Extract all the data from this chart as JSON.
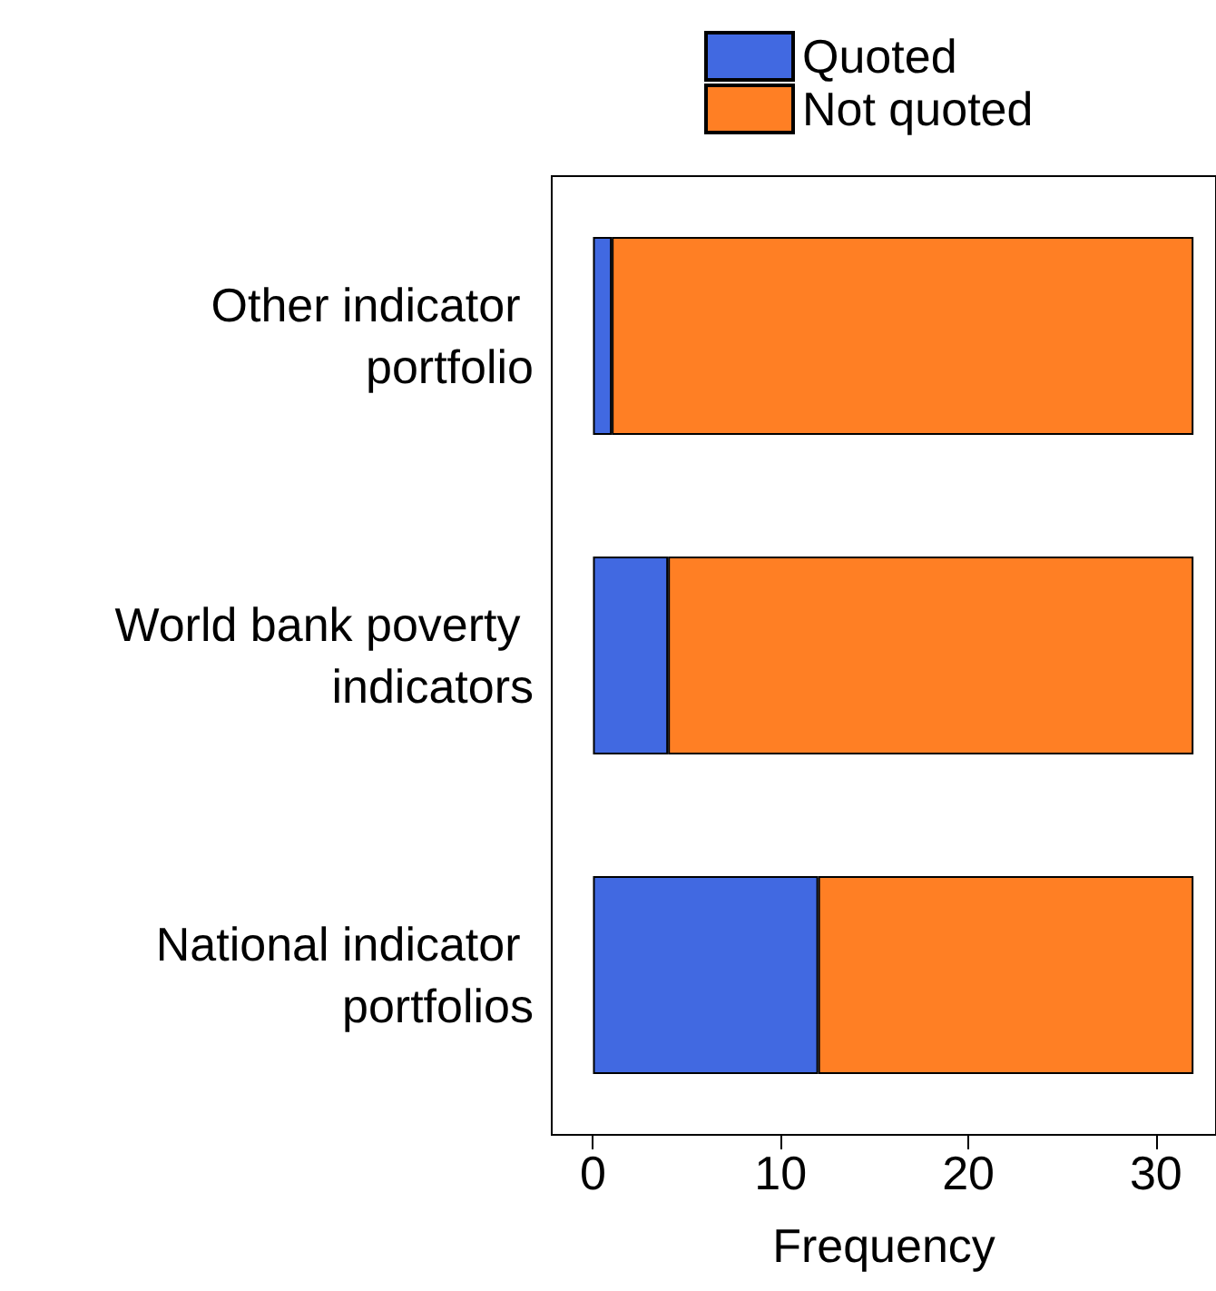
{
  "chart_data": {
    "type": "bar",
    "orientation": "horizontal",
    "stacked": true,
    "xlabel": "Frequency",
    "categories": [
      "Other indicator portfolio",
      "World bank poverty indicators",
      "National indicator portfolios"
    ],
    "series": [
      {
        "name": "Quoted",
        "color": "#4169e1",
        "values": [
          1,
          4,
          12
        ]
      },
      {
        "name": "Not quoted",
        "color": "#ff7f24",
        "values": [
          31,
          28,
          20
        ]
      }
    ],
    "xlim": [
      -2.2,
      33.2
    ],
    "xticks": [
      0,
      10,
      20,
      30
    ],
    "legend": "top",
    "grid": false
  }
}
